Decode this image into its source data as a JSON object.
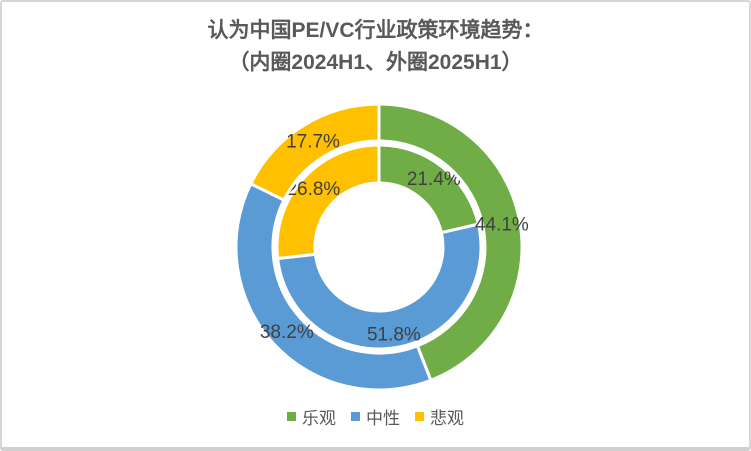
{
  "frame": {
    "background": "#ffffff",
    "border_color": "#d6d6d6"
  },
  "chart_data": {
    "type": "doughnut",
    "title": "认为中国PE/VC行业政策环境趋势：",
    "subtitle": "（内圈2024H1、外圈2025H1）",
    "categories": [
      "乐观",
      "中性",
      "悲观"
    ],
    "semantic": [
      "optimistic",
      "neutral",
      "pessimistic"
    ],
    "colors": [
      "#70AD47",
      "#5B9BD5",
      "#FFC000"
    ],
    "rings": [
      {
        "name": "2024H1",
        "position": "inner",
        "values": [
          21.4,
          51.8,
          26.8
        ],
        "labels": [
          "21.4%",
          "51.8%",
          "26.8%"
        ]
      },
      {
        "name": "2025H1",
        "position": "outer",
        "values": [
          44.1,
          38.2,
          17.7
        ],
        "labels": [
          "44.1%",
          "38.2%",
          "17.7%"
        ]
      }
    ],
    "start_angle_deg": 0,
    "direction": "clockwise",
    "slice_border_color": "#ffffff",
    "label_color": "#404040",
    "title_color": "#595959",
    "legend_text_color": "#595959",
    "legend_position": "bottom"
  }
}
